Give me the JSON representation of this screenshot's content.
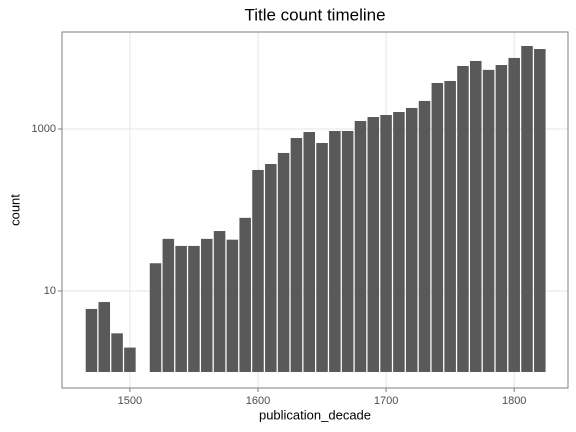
{
  "chart_data": {
    "type": "bar",
    "title": "Title count timeline",
    "x_label": "publication_decade",
    "y_label": "count",
    "x": [
      1470,
      1480,
      1490,
      1500,
      1510,
      1520,
      1530,
      1540,
      1550,
      1560,
      1570,
      1580,
      1590,
      1600,
      1610,
      1620,
      1630,
      1640,
      1650,
      1660,
      1670,
      1680,
      1690,
      1700,
      1710,
      1720,
      1730,
      1740,
      1750,
      1760,
      1770,
      1780,
      1790,
      1800,
      1810,
      1820
    ],
    "values": [
      6,
      7.3,
      3,
      2,
      null,
      22,
      44,
      36,
      36,
      44,
      55,
      43,
      80,
      312,
      370,
      506,
      774,
      918,
      672,
      945,
      945,
      1255,
      1406,
      1490,
      1622,
      1820,
      2220,
      3700,
      3920,
      6000,
      6920,
      5370,
      6170,
      7540,
      10600,
      9720
    ],
    "color": "#595959",
    "xlim": [
      1447,
      1842
    ],
    "xticks": [
      1500,
      1600,
      1700,
      1800
    ],
    "ylim": [
      0.634,
      15770
    ],
    "yticks": [
      10,
      1000
    ],
    "log_y": true,
    "grid": true
  }
}
